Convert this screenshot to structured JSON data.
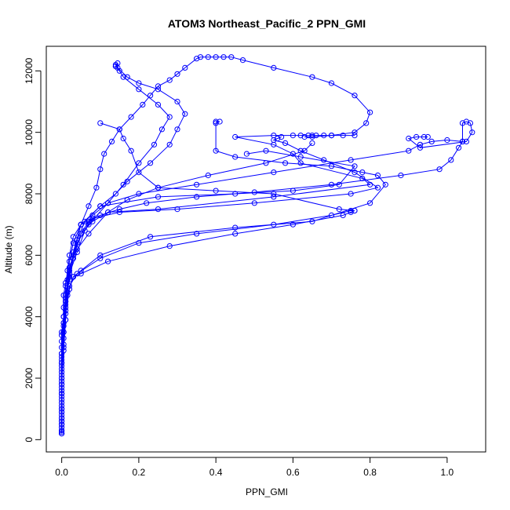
{
  "chart_data": {
    "type": "line",
    "title": "ATOM3 Northeast_Pacific_2 PPN_GMI",
    "xlabel": "PPN_GMI",
    "ylabel": "Altitude (m)",
    "xlim": [
      -0.04,
      1.1
    ],
    "ylim": [
      -400,
      12800
    ],
    "xticks": [
      0,
      0.2,
      0.4,
      0.6,
      0.8,
      1.0
    ],
    "xtick_labels": [
      "0.0",
      "0.2",
      "0.4",
      "0.6",
      "0.8",
      "1.0"
    ],
    "yticks": [
      0,
      2000,
      4000,
      6000,
      8000,
      10000,
      12000
    ],
    "ytick_labels": [
      "0",
      "2000",
      "4000",
      "6000",
      "8000",
      "10000",
      "12000"
    ],
    "grid": false,
    "legend": "none",
    "color": "#0000ff",
    "marker": "open-circle",
    "series": [
      {
        "points": [
          [
            0.0,
            200
          ],
          [
            0.0,
            600
          ],
          [
            0.0,
            1000
          ],
          [
            0.0,
            1500
          ],
          [
            0.0,
            2000
          ],
          [
            0.0,
            2600
          ],
          [
            0.0,
            3200
          ],
          [
            0.005,
            3800
          ],
          [
            0.005,
            4300
          ],
          [
            0.005,
            4700
          ],
          [
            0.01,
            5100
          ],
          [
            0.02,
            5600
          ],
          [
            0.04,
            6200
          ],
          [
            0.07,
            6700
          ],
          [
            0.12,
            7400
          ],
          [
            0.25,
            7500
          ],
          [
            0.55,
            7900
          ],
          [
            0.8,
            8300
          ],
          [
            0.78,
            8500
          ],
          [
            0.62,
            9000
          ],
          [
            0.6,
            9300
          ],
          [
            0.55,
            9600
          ],
          [
            0.45,
            9850
          ],
          [
            0.55,
            9900
          ],
          [
            0.6,
            9900
          ],
          [
            0.62,
            9900
          ],
          [
            0.64,
            9900
          ],
          [
            0.65,
            9900
          ],
          [
            0.66,
            9900
          ],
          [
            0.68,
            9900
          ],
          [
            0.7,
            9900
          ],
          [
            0.73,
            9900
          ],
          [
            0.76,
            9900
          ]
        ]
      },
      {
        "points": [
          [
            0.0,
            250
          ],
          [
            0.0,
            700
          ],
          [
            0.0,
            1200
          ],
          [
            0.0,
            1800
          ],
          [
            0.0,
            2400
          ],
          [
            0.0,
            3000
          ],
          [
            0.0,
            3500
          ],
          [
            0.005,
            4000
          ],
          [
            0.01,
            4500
          ],
          [
            0.01,
            5000
          ],
          [
            0.015,
            5500
          ],
          [
            0.02,
            6000
          ],
          [
            0.03,
            6600
          ],
          [
            0.05,
            7000
          ],
          [
            0.08,
            7200
          ],
          [
            0.15,
            7400
          ],
          [
            0.3,
            7500
          ],
          [
            0.5,
            7700
          ],
          [
            0.75,
            8000
          ],
          [
            0.82,
            8200
          ],
          [
            0.76,
            8700
          ],
          [
            0.68,
            9100
          ],
          [
            0.62,
            9400
          ],
          [
            0.58,
            9650
          ],
          [
            0.55,
            9750
          ],
          [
            0.56,
            9800
          ],
          [
            0.57,
            9850
          ]
        ]
      },
      {
        "points": [
          [
            0.0,
            200
          ],
          [
            0.0,
            500
          ],
          [
            0.0,
            1000
          ],
          [
            0.0,
            1600
          ],
          [
            0.0,
            2200
          ],
          [
            0.0,
            2800
          ],
          [
            0.0,
            3400
          ],
          [
            0.005,
            4000
          ],
          [
            0.01,
            4600
          ],
          [
            0.015,
            5200
          ],
          [
            0.02,
            5800
          ],
          [
            0.03,
            6400
          ],
          [
            0.05,
            7000
          ],
          [
            0.1,
            7600
          ],
          [
            0.25,
            7900
          ],
          [
            0.45,
            8000
          ],
          [
            0.6,
            8100
          ],
          [
            0.72,
            8300
          ],
          [
            0.76,
            8900
          ],
          [
            0.62,
            9200
          ],
          [
            0.53,
            9400
          ],
          [
            0.48,
            9300
          ]
        ]
      },
      {
        "points": [
          [
            0.0,
            500
          ],
          [
            0.0,
            1400
          ],
          [
            0.0,
            2500
          ],
          [
            0.005,
            3500
          ],
          [
            0.01,
            4200
          ],
          [
            0.02,
            5000
          ],
          [
            0.04,
            5400
          ],
          [
            0.1,
            5900
          ],
          [
            0.2,
            6400
          ],
          [
            0.35,
            6700
          ],
          [
            0.55,
            7000
          ],
          [
            0.7,
            7300
          ],
          [
            0.75,
            7450
          ],
          [
            0.76,
            7450
          ],
          [
            0.72,
            7500
          ],
          [
            0.55,
            8000
          ],
          [
            0.4,
            8100
          ],
          [
            0.25,
            8200
          ],
          [
            0.2,
            8700
          ],
          [
            0.18,
            9400
          ],
          [
            0.16,
            9800
          ],
          [
            0.15,
            10100
          ],
          [
            0.1,
            10300
          ]
        ]
      },
      {
        "points": [
          [
            0.0,
            400
          ],
          [
            0.0,
            1100
          ],
          [
            0.0,
            2100
          ],
          [
            0.005,
            3100
          ],
          [
            0.01,
            4100
          ],
          [
            0.02,
            4900
          ],
          [
            0.03,
            5300
          ],
          [
            0.05,
            5400
          ],
          [
            0.12,
            5800
          ],
          [
            0.28,
            6300
          ],
          [
            0.45,
            6700
          ],
          [
            0.6,
            7000
          ],
          [
            0.73,
            7300
          ],
          [
            0.75,
            7400
          ],
          [
            0.76,
            7450
          ]
        ]
      },
      {
        "points": [
          [
            0.0,
            300
          ],
          [
            0.0,
            900
          ],
          [
            0.0,
            1900
          ],
          [
            0.005,
            2900
          ],
          [
            0.01,
            3900
          ],
          [
            0.015,
            4700
          ],
          [
            0.03,
            5300
          ],
          [
            0.05,
            5500
          ],
          [
            0.1,
            6000
          ],
          [
            0.23,
            6600
          ],
          [
            0.45,
            6900
          ],
          [
            0.65,
            7100
          ],
          [
            0.8,
            7700
          ],
          [
            0.84,
            8300
          ],
          [
            0.82,
            8600
          ],
          [
            0.78,
            8700
          ],
          [
            0.7,
            8900
          ],
          [
            0.58,
            9000
          ],
          [
            0.45,
            9200
          ],
          [
            0.4,
            9400
          ],
          [
            0.4,
            10300
          ],
          [
            0.41,
            10350
          ],
          [
            0.4,
            10350
          ]
        ]
      },
      {
        "points": [
          [
            0.0,
            700
          ],
          [
            0.0,
            1700
          ],
          [
            0.0,
            2700
          ],
          [
            0.005,
            3700
          ],
          [
            0.01,
            4500
          ],
          [
            0.02,
            5200
          ],
          [
            0.03,
            5900
          ],
          [
            0.05,
            6700
          ],
          [
            0.07,
            7100
          ],
          [
            0.1,
            7300
          ],
          [
            0.15,
            7500
          ],
          [
            0.22,
            7700
          ],
          [
            0.35,
            7900
          ],
          [
            0.5,
            8050
          ],
          [
            0.7,
            8300
          ],
          [
            0.88,
            8600
          ],
          [
            0.98,
            8800
          ],
          [
            1.01,
            9100
          ],
          [
            1.03,
            9500
          ],
          [
            1.04,
            9700
          ],
          [
            1.04,
            10300
          ],
          [
            1.05,
            10350
          ],
          [
            1.06,
            10300
          ],
          [
            1.065,
            10000
          ],
          [
            1.05,
            9700
          ],
          [
            0.93,
            9500
          ],
          [
            0.9,
            9800
          ],
          [
            0.92,
            9850
          ],
          [
            0.94,
            9850
          ],
          [
            0.95,
            9850
          ]
        ]
      },
      {
        "points": [
          [
            0.0,
            600
          ],
          [
            0.0,
            1500
          ],
          [
            0.0,
            2500
          ],
          [
            0.005,
            3500
          ],
          [
            0.01,
            4400
          ],
          [
            0.02,
            5400
          ],
          [
            0.04,
            6100
          ],
          [
            0.06,
            6800
          ],
          [
            0.08,
            7300
          ],
          [
            0.12,
            7700
          ],
          [
            0.2,
            8000
          ],
          [
            0.35,
            8300
          ],
          [
            0.55,
            8700
          ],
          [
            0.75,
            9100
          ],
          [
            0.9,
            9400
          ],
          [
            0.93,
            9600
          ],
          [
            0.96,
            9700
          ],
          [
            1.0,
            9750
          ],
          [
            1.04,
            9700
          ]
        ]
      },
      {
        "points": [
          [
            0.0,
            300
          ],
          [
            0.0,
            1300
          ],
          [
            0.0,
            2300
          ],
          [
            0.005,
            3300
          ],
          [
            0.01,
            4300
          ],
          [
            0.015,
            5200
          ],
          [
            0.03,
            6000
          ],
          [
            0.05,
            6700
          ],
          [
            0.08,
            7100
          ],
          [
            0.12,
            7400
          ],
          [
            0.17,
            7800
          ],
          [
            0.25,
            8200
          ],
          [
            0.38,
            8600
          ],
          [
            0.53,
            9000
          ],
          [
            0.63,
            9400
          ],
          [
            0.65,
            9650
          ]
        ]
      },
      {
        "points": [
          [
            0.0,
            200
          ],
          [
            0.0,
            900
          ],
          [
            0.0,
            2000
          ],
          [
            0.005,
            3000
          ],
          [
            0.01,
            3900
          ],
          [
            0.015,
            4800
          ],
          [
            0.02,
            5500
          ],
          [
            0.04,
            6500
          ],
          [
            0.06,
            7100
          ],
          [
            0.1,
            7600
          ],
          [
            0.14,
            8000
          ],
          [
            0.17,
            8400
          ],
          [
            0.23,
            9000
          ],
          [
            0.28,
            9600
          ],
          [
            0.3,
            10100
          ],
          [
            0.32,
            10600
          ],
          [
            0.3,
            11000
          ],
          [
            0.25,
            11400
          ],
          [
            0.2,
            11600
          ],
          [
            0.17,
            11800
          ],
          [
            0.145,
            12100
          ],
          [
            0.14,
            12200
          ],
          [
            0.145,
            12250
          ],
          [
            0.14,
            12150
          ]
        ]
      },
      {
        "points": [
          [
            0.0,
            800
          ],
          [
            0.0,
            1800
          ],
          [
            0.0,
            2800
          ],
          [
            0.005,
            3800
          ],
          [
            0.01,
            4700
          ],
          [
            0.02,
            5600
          ],
          [
            0.04,
            6400
          ],
          [
            0.07,
            7000
          ],
          [
            0.12,
            7700
          ],
          [
            0.16,
            8300
          ],
          [
            0.2,
            9000
          ],
          [
            0.24,
            9600
          ],
          [
            0.26,
            10100
          ],
          [
            0.28,
            10500
          ],
          [
            0.25,
            10900
          ],
          [
            0.2,
            11400
          ],
          [
            0.16,
            11800
          ],
          [
            0.15,
            12000
          ],
          [
            0.14,
            12150
          ]
        ]
      },
      {
        "points": [
          [
            0.0,
            500
          ],
          [
            0.0,
            1500
          ],
          [
            0.0,
            2500
          ],
          [
            0.005,
            3500
          ],
          [
            0.01,
            4500
          ],
          [
            0.02,
            5300
          ],
          [
            0.03,
            6100
          ],
          [
            0.05,
            7000
          ],
          [
            0.07,
            7600
          ],
          [
            0.09,
            8200
          ],
          [
            0.1,
            8800
          ],
          [
            0.11,
            9300
          ],
          [
            0.13,
            9700
          ],
          [
            0.15,
            10100
          ],
          [
            0.18,
            10500
          ],
          [
            0.21,
            10900
          ],
          [
            0.23,
            11200
          ],
          [
            0.25,
            11500
          ],
          [
            0.28,
            11700
          ],
          [
            0.3,
            11900
          ],
          [
            0.32,
            12100
          ],
          [
            0.35,
            12400
          ],
          [
            0.36,
            12450
          ],
          [
            0.38,
            12450
          ],
          [
            0.4,
            12450
          ],
          [
            0.42,
            12450
          ],
          [
            0.44,
            12450
          ],
          [
            0.47,
            12350
          ],
          [
            0.55,
            12100
          ],
          [
            0.65,
            11800
          ],
          [
            0.7,
            11600
          ],
          [
            0.76,
            11200
          ],
          [
            0.8,
            10650
          ],
          [
            0.79,
            10300
          ],
          [
            0.76,
            10000
          ],
          [
            0.7,
            9900
          ],
          [
            0.65,
            9850
          ],
          [
            0.63,
            9850
          ]
        ]
      }
    ]
  }
}
